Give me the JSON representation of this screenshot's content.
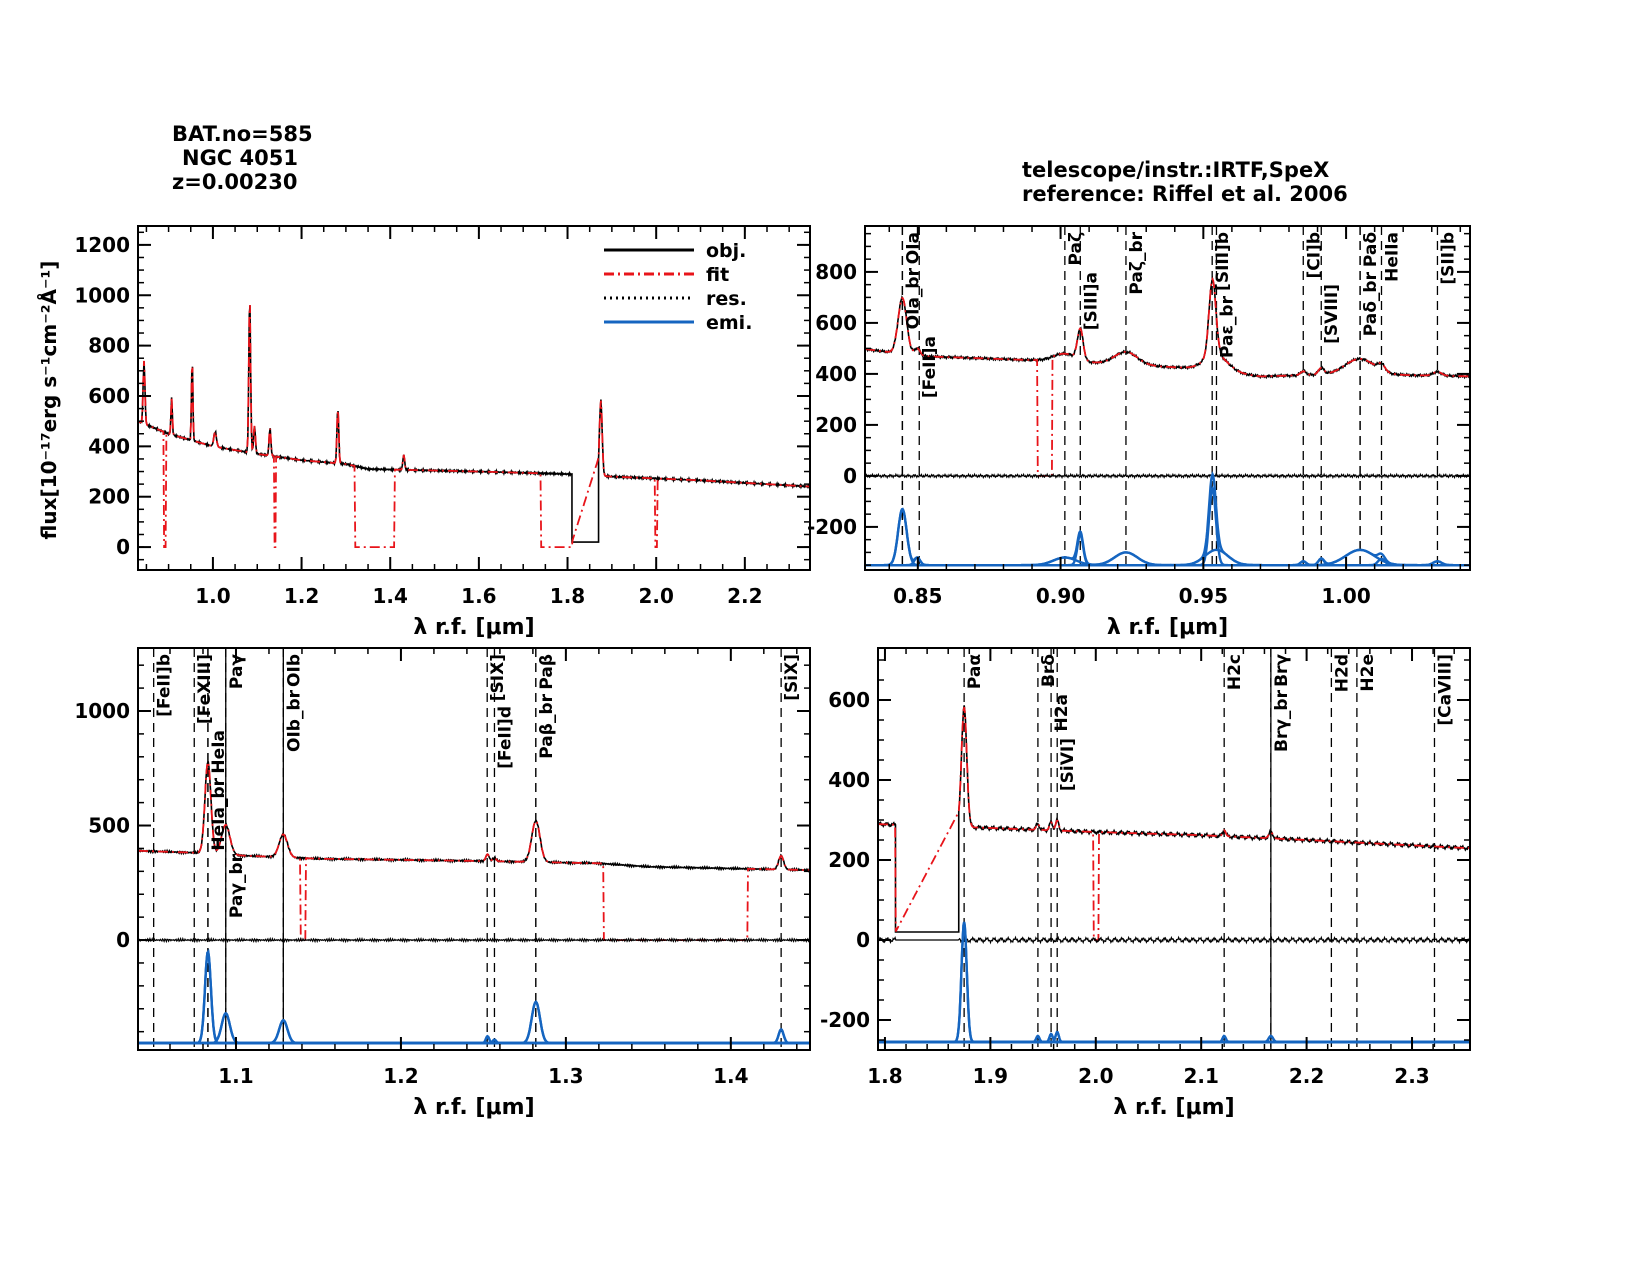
{
  "header": {
    "bat": "BAT.no=585",
    "name": "NGC 4051",
    "z": "z=0.00230",
    "telescope": "telescope/instr.:IRTF,SpeX",
    "reference": "reference: Riffel et al. 2006"
  },
  "ylabel": "flux[10⁻¹⁷erg s⁻¹cm⁻²Å⁻¹]",
  "xlabel": "λ r.f. [μm]",
  "legend": [
    "obj.",
    "fit",
    "res.",
    "emi."
  ],
  "colors": {
    "obj": "#000000",
    "fit": "#e8141a",
    "res": "#000000",
    "emi": "#1565c0"
  },
  "chart_data": [
    {
      "type": "line",
      "panel": "full",
      "xlim": [
        0.831,
        2.347
      ],
      "ylim": [
        -91,
        1275
      ],
      "xticks": [
        1.0,
        1.2,
        1.4,
        1.6,
        1.8,
        2.0,
        2.2
      ],
      "xminor": 0.05,
      "yticks": [
        0,
        200,
        400,
        600,
        800,
        1000,
        1200
      ],
      "yminor": 50,
      "xtick_fmt": 1,
      "continuum": [
        [
          0.83,
          500
        ],
        [
          0.9,
          450
        ],
        [
          1.0,
          400
        ],
        [
          1.1,
          370
        ],
        [
          1.2,
          345
        ],
        [
          1.3,
          330
        ],
        [
          1.35,
          310
        ],
        [
          1.6,
          300
        ],
        [
          1.8,
          290
        ],
        [
          1.9,
          280
        ],
        [
          2.1,
          265
        ],
        [
          2.35,
          240
        ]
      ],
      "peaks": [
        [
          0.8446,
          250,
          0.002
        ],
        [
          0.9069,
          150,
          0.0015
        ],
        [
          0.9532,
          330,
          0.0015
        ],
        [
          1.005,
          60,
          0.003
        ],
        [
          1.083,
          620,
          0.002
        ],
        [
          1.0938,
          110,
          0.002
        ],
        [
          1.1287,
          110,
          0.002
        ],
        [
          1.2818,
          220,
          0.002
        ],
        [
          1.4305,
          60,
          0.002
        ],
        [
          1.8751,
          300,
          0.003
        ]
      ],
      "obj_gap": [
        1.81,
        1.87,
        20
      ],
      "fit_zero": [
        [
          0.889,
          0.895
        ],
        [
          1.138,
          1.142
        ],
        [
          1.32,
          1.41
        ],
        [
          1.74,
          1.81
        ],
        [
          1.998,
          2.003
        ]
      ],
      "show_res": false,
      "show_emi": false,
      "legend": true,
      "markers": []
    },
    {
      "type": "line",
      "panel": "zoom-0.83-1.04",
      "xlim": [
        0.8315,
        1.0434
      ],
      "ylim": [
        -369,
        980
      ],
      "xticks": [
        0.85,
        0.9,
        0.95,
        1.0
      ],
      "xminor": 0.01,
      "yticks": [
        -200,
        0,
        200,
        400,
        600,
        800
      ],
      "yminor": 50,
      "xtick_fmt": 2,
      "continuum": [
        [
          0.83,
          500
        ],
        [
          0.85,
          470
        ],
        [
          0.9,
          450
        ],
        [
          0.95,
          420
        ],
        [
          0.97,
          390
        ],
        [
          1.0,
          400
        ],
        [
          1.045,
          390
        ]
      ],
      "peaks": [
        [
          0.8446,
          220,
          0.0015
        ],
        [
          0.8498,
          30,
          0.001
        ],
        [
          0.9015,
          30,
          0.004
        ],
        [
          0.9069,
          120,
          0.001
        ],
        [
          0.9229,
          50,
          0.004
        ],
        [
          0.9532,
          300,
          0.0012
        ],
        [
          0.9546,
          60,
          0.004
        ],
        [
          0.985,
          15,
          0.001
        ],
        [
          0.9913,
          25,
          0.001
        ],
        [
          1.0049,
          60,
          0.005
        ],
        [
          1.0124,
          25,
          0.0012
        ],
        [
          1.032,
          15,
          0.0015
        ]
      ],
      "fit_zero": [
        [
          0.892,
          0.897
        ]
      ],
      "res_offset": 0,
      "emi_offset": -350,
      "show_res": true,
      "show_emi": true,
      "legend": false,
      "markers": [
        {
          "x": 0.8446,
          "label": "OIa"
        },
        {
          "x": 0.8446,
          "label": "OIa_br"
        },
        {
          "x": 0.8505,
          "label": "[FeII]a"
        },
        {
          "x": 0.9015,
          "label": "Paζ"
        },
        {
          "x": 0.9069,
          "label": "[SIII]a"
        },
        {
          "x": 0.9229,
          "label": "Paζ_br"
        },
        {
          "x": 0.9531,
          "label": "[SIII]b"
        },
        {
          "x": 0.9546,
          "label": "Paε_br"
        },
        {
          "x": 0.985,
          "label": "[CI]b"
        },
        {
          "x": 0.9913,
          "label": "[SVIII]"
        },
        {
          "x": 1.0049,
          "label": "Paδ"
        },
        {
          "x": 1.0049,
          "label": "Paδ_br"
        },
        {
          "x": 1.0124,
          "label": "HeIIa"
        },
        {
          "x": 1.032,
          "label": "[SII]b"
        }
      ]
    },
    {
      "type": "line",
      "panel": "zoom-1.04-1.45",
      "xlim": [
        1.0406,
        1.448
      ],
      "ylim": [
        -480,
        1275
      ],
      "xticks": [
        1.1,
        1.2,
        1.3,
        1.4
      ],
      "xminor": 0.02,
      "yticks": [
        0,
        500,
        1000
      ],
      "yminor": 100,
      "xtick_fmt": 1,
      "continuum": [
        [
          1.04,
          390
        ],
        [
          1.08,
          380
        ],
        [
          1.1,
          370
        ],
        [
          1.15,
          355
        ],
        [
          1.25,
          345
        ],
        [
          1.32,
          335
        ],
        [
          1.35,
          320
        ],
        [
          1.45,
          305
        ]
      ],
      "peaks": [
        [
          1.083,
          400,
          0.0018
        ],
        [
          1.0938,
          130,
          0.0025
        ],
        [
          1.1287,
          100,
          0.0025
        ],
        [
          1.2525,
          30,
          0.001
        ],
        [
          1.2567,
          15,
          0.001
        ],
        [
          1.2818,
          180,
          0.0025
        ],
        [
          1.4305,
          60,
          0.0015
        ]
      ],
      "fit_zero": [
        [
          1.139,
          1.142
        ],
        [
          1.323,
          1.41
        ]
      ],
      "res_offset": 0,
      "emi_offset": -450,
      "show_res": true,
      "show_emi": true,
      "legend": false,
      "markers": [
        {
          "x": 1.0501,
          "label": "[FeII]b"
        },
        {
          "x": 1.0747,
          "label": "[FeXIII]"
        },
        {
          "x": 1.083,
          "label": "HeIa"
        },
        {
          "x": 1.083,
          "label": "HeIa_br"
        },
        {
          "x": 1.0938,
          "label": "Paγ",
          "style": "solid"
        },
        {
          "x": 1.0938,
          "label": "Paγ_br"
        },
        {
          "x": 1.1287,
          "label": "OIb",
          "style": "solid"
        },
        {
          "x": 1.1287,
          "label": "OIb_br"
        },
        {
          "x": 1.2523,
          "label": "[SIX]"
        },
        {
          "x": 1.2567,
          "label": "[FeII]d"
        },
        {
          "x": 1.2818,
          "label": "Paβ"
        },
        {
          "x": 1.2818,
          "label": "Paβ_br"
        },
        {
          "x": 1.4305,
          "label": "[SiX]"
        }
      ]
    },
    {
      "type": "line",
      "panel": "zoom-1.79-2.35",
      "xlim": [
        1.7934,
        2.355
      ],
      "ylim": [
        -275,
        730
      ],
      "xticks": [
        1.8,
        1.9,
        2.0,
        2.1,
        2.2,
        2.3
      ],
      "xminor": 0.02,
      "yticks": [
        -200,
        0,
        200,
        400,
        600
      ],
      "yminor": 50,
      "xtick_fmt": 1,
      "continuum": [
        [
          1.79,
          290
        ],
        [
          1.9,
          280
        ],
        [
          2.0,
          270
        ],
        [
          2.1,
          262
        ],
        [
          2.2,
          250
        ],
        [
          2.35,
          230
        ]
      ],
      "peaks": [
        [
          1.8751,
          300,
          0.0025
        ],
        [
          1.945,
          15,
          0.0015
        ],
        [
          1.9576,
          20,
          0.0015
        ],
        [
          1.9634,
          25,
          0.0015
        ],
        [
          2.1218,
          15,
          0.0015
        ],
        [
          2.1661,
          15,
          0.002
        ]
      ],
      "obj_gap": [
        1.81,
        1.87,
        20
      ],
      "fit_zero": [
        [
          1.998,
          2.003
        ]
      ],
      "res_offset": 0,
      "emi_offset": -255,
      "show_res": true,
      "show_emi": true,
      "legend": false,
      "markers": [
        {
          "x": 1.8751,
          "label": "Paα"
        },
        {
          "x": 1.9451,
          "label": "Brδ"
        },
        {
          "x": 1.9576,
          "label": "H2a"
        },
        {
          "x": 1.9634,
          "label": "[SiVI]"
        },
        {
          "x": 2.1218,
          "label": "H2c"
        },
        {
          "x": 2.1661,
          "label": "Brγ",
          "style": "solid"
        },
        {
          "x": 2.1661,
          "label": "Brγ_br"
        },
        {
          "x": 2.2235,
          "label": "H2d"
        },
        {
          "x": 2.2477,
          "label": "H2e"
        },
        {
          "x": 2.3213,
          "label": "[CaVIII]"
        }
      ]
    }
  ]
}
